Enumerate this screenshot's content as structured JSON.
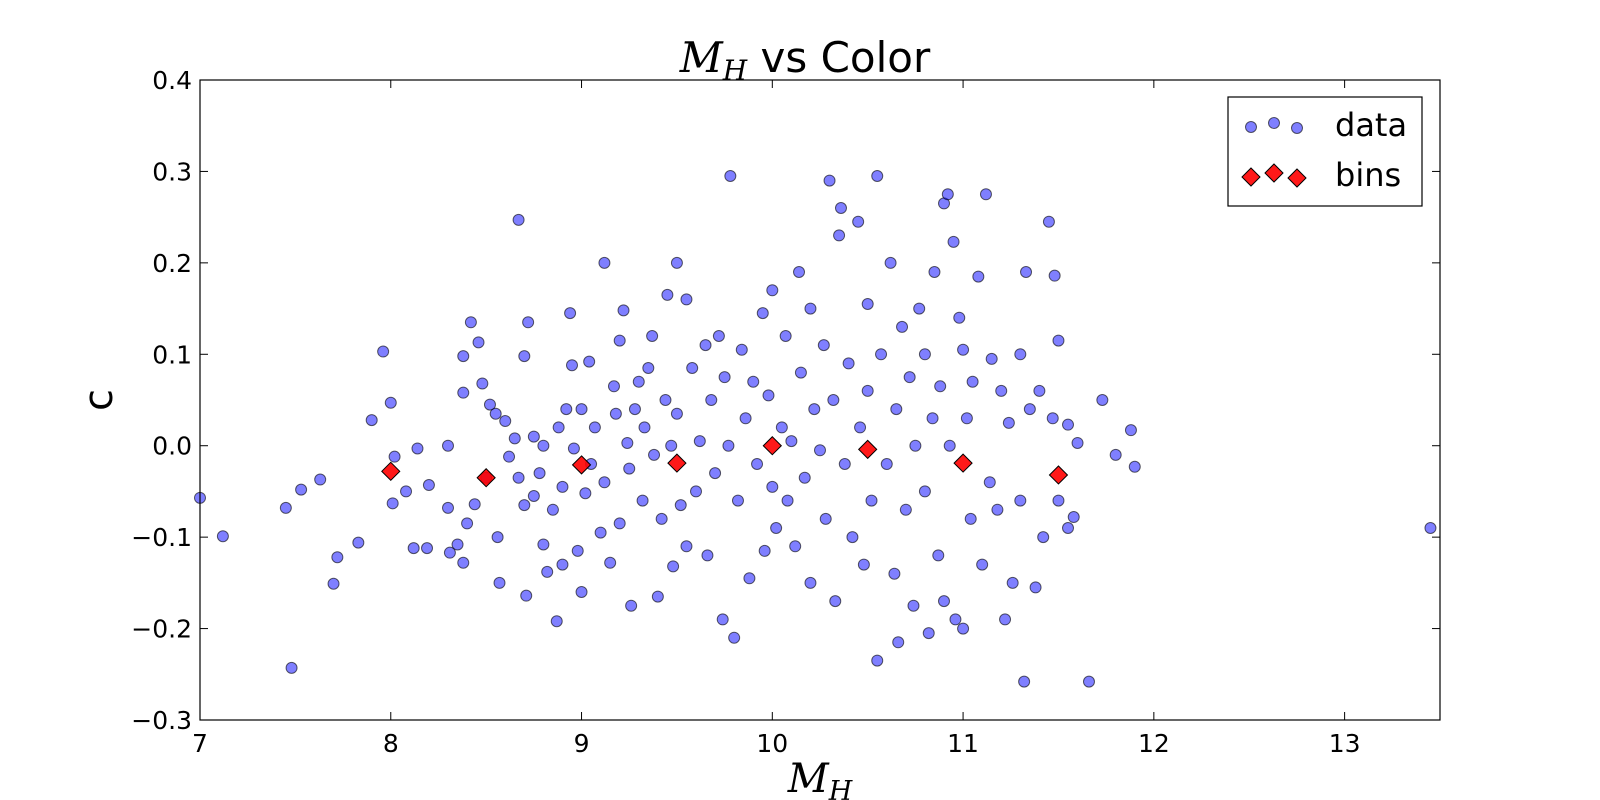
{
  "chart_data": {
    "type": "scatter",
    "title": {
      "math": "M",
      "sub": "H",
      "rest": " vs Color"
    },
    "xlabel": {
      "math": "M",
      "sub": "H"
    },
    "ylabel": "c",
    "xlim": [
      7,
      13.5
    ],
    "ylim": [
      -0.3,
      0.4
    ],
    "xticks": [
      7,
      8,
      9,
      10,
      11,
      12,
      13
    ],
    "yticks": [
      -0.3,
      -0.2,
      -0.1,
      0.0,
      0.1,
      0.2,
      0.3,
      0.4
    ],
    "xtick_labels": [
      "7",
      "8",
      "9",
      "10",
      "11",
      "12",
      "13"
    ],
    "ytick_labels": [
      "−0.3",
      "−0.2",
      "−0.1",
      "0.0",
      "0.1",
      "0.2",
      "0.3",
      "0.4"
    ],
    "grid": false,
    "legend": {
      "position": "top-right",
      "entries": [
        "data",
        "bins"
      ]
    },
    "series": [
      {
        "name": "data",
        "marker": "circle",
        "color": "#0000ff",
        "points": [
          [
            7.0,
            -0.057
          ],
          [
            7.12,
            -0.099
          ],
          [
            7.45,
            -0.068
          ],
          [
            7.48,
            -0.243
          ],
          [
            7.53,
            -0.048
          ],
          [
            7.63,
            -0.037
          ],
          [
            7.7,
            -0.151
          ],
          [
            7.72,
            -0.122
          ],
          [
            7.83,
            -0.106
          ],
          [
            7.9,
            0.028
          ],
          [
            7.96,
            0.103
          ],
          [
            8.0,
            0.047
          ],
          [
            8.01,
            -0.063
          ],
          [
            8.02,
            -0.012
          ],
          [
            8.08,
            -0.05
          ],
          [
            8.12,
            -0.112
          ],
          [
            8.14,
            -0.003
          ],
          [
            8.19,
            -0.112
          ],
          [
            8.2,
            -0.043
          ],
          [
            8.3,
            -0.068
          ],
          [
            8.3,
            0.0
          ],
          [
            8.31,
            -0.117
          ],
          [
            8.35,
            -0.108
          ],
          [
            8.38,
            0.098
          ],
          [
            8.38,
            0.058
          ],
          [
            8.38,
            -0.128
          ],
          [
            8.4,
            -0.085
          ],
          [
            8.42,
            0.135
          ],
          [
            8.44,
            -0.064
          ],
          [
            8.46,
            0.113
          ],
          [
            8.48,
            0.068
          ],
          [
            8.5,
            -0.035
          ],
          [
            8.52,
            0.045
          ],
          [
            8.55,
            0.035
          ],
          [
            8.56,
            -0.1
          ],
          [
            8.57,
            -0.15
          ],
          [
            8.6,
            0.027
          ],
          [
            8.62,
            -0.012
          ],
          [
            8.65,
            0.008
          ],
          [
            8.67,
            -0.035
          ],
          [
            8.67,
            0.247
          ],
          [
            8.7,
            0.098
          ],
          [
            8.7,
            -0.065
          ],
          [
            8.71,
            -0.164
          ],
          [
            8.72,
            0.135
          ],
          [
            8.75,
            -0.055
          ],
          [
            8.75,
            0.01
          ],
          [
            8.78,
            -0.03
          ],
          [
            8.8,
            -0.108
          ],
          [
            8.8,
            0.0
          ],
          [
            8.82,
            -0.138
          ],
          [
            8.85,
            -0.07
          ],
          [
            8.87,
            -0.192
          ],
          [
            8.88,
            0.02
          ],
          [
            8.9,
            -0.045
          ],
          [
            8.9,
            -0.13
          ],
          [
            8.92,
            0.04
          ],
          [
            8.94,
            0.145
          ],
          [
            8.95,
            0.088
          ],
          [
            8.96,
            -0.003
          ],
          [
            8.98,
            -0.115
          ],
          [
            9.0,
            -0.16
          ],
          [
            9.0,
            0.04
          ],
          [
            9.02,
            -0.052
          ],
          [
            9.04,
            0.092
          ],
          [
            9.05,
            -0.02
          ],
          [
            9.07,
            0.02
          ],
          [
            9.1,
            -0.095
          ],
          [
            9.12,
            0.2
          ],
          [
            9.12,
            -0.04
          ],
          [
            9.15,
            -0.128
          ],
          [
            9.17,
            0.065
          ],
          [
            9.18,
            0.035
          ],
          [
            9.2,
            0.115
          ],
          [
            9.2,
            -0.085
          ],
          [
            9.22,
            0.148
          ],
          [
            9.24,
            0.003
          ],
          [
            9.25,
            -0.025
          ],
          [
            9.26,
            -0.175
          ],
          [
            9.28,
            0.04
          ],
          [
            9.3,
            0.07
          ],
          [
            9.32,
            -0.06
          ],
          [
            9.33,
            0.02
          ],
          [
            9.35,
            0.085
          ],
          [
            9.37,
            0.12
          ],
          [
            9.38,
            -0.01
          ],
          [
            9.4,
            -0.165
          ],
          [
            9.42,
            -0.08
          ],
          [
            9.44,
            0.05
          ],
          [
            9.45,
            0.165
          ],
          [
            9.47,
            0.0
          ],
          [
            9.48,
            -0.132
          ],
          [
            9.5,
            0.2
          ],
          [
            9.5,
            0.035
          ],
          [
            9.52,
            -0.065
          ],
          [
            9.55,
            0.16
          ],
          [
            9.55,
            -0.11
          ],
          [
            9.58,
            0.085
          ],
          [
            9.6,
            -0.05
          ],
          [
            9.62,
            0.005
          ],
          [
            9.65,
            0.11
          ],
          [
            9.66,
            -0.12
          ],
          [
            9.68,
            0.05
          ],
          [
            9.7,
            -0.03
          ],
          [
            9.72,
            0.12
          ],
          [
            9.74,
            -0.19
          ],
          [
            9.75,
            0.075
          ],
          [
            9.77,
            0.0
          ],
          [
            9.78,
            0.295
          ],
          [
            9.8,
            -0.21
          ],
          [
            9.82,
            -0.06
          ],
          [
            9.84,
            0.105
          ],
          [
            9.86,
            0.03
          ],
          [
            9.88,
            -0.145
          ],
          [
            9.9,
            0.07
          ],
          [
            9.92,
            -0.02
          ],
          [
            9.95,
            0.145
          ],
          [
            9.96,
            -0.115
          ],
          [
            9.98,
            0.055
          ],
          [
            10.0,
            -0.045
          ],
          [
            10.0,
            0.17
          ],
          [
            10.02,
            -0.09
          ],
          [
            10.05,
            0.02
          ],
          [
            10.07,
            0.12
          ],
          [
            10.08,
            -0.06
          ],
          [
            10.1,
            0.005
          ],
          [
            10.12,
            -0.11
          ],
          [
            10.14,
            0.19
          ],
          [
            10.15,
            0.08
          ],
          [
            10.17,
            -0.035
          ],
          [
            10.2,
            0.15
          ],
          [
            10.2,
            -0.15
          ],
          [
            10.22,
            0.04
          ],
          [
            10.25,
            -0.005
          ],
          [
            10.27,
            0.11
          ],
          [
            10.28,
            -0.08
          ],
          [
            10.3,
            0.29
          ],
          [
            10.32,
            0.05
          ],
          [
            10.33,
            -0.17
          ],
          [
            10.35,
            0.23
          ],
          [
            10.36,
            0.26
          ],
          [
            10.38,
            -0.02
          ],
          [
            10.4,
            0.09
          ],
          [
            10.42,
            -0.1
          ],
          [
            10.45,
            0.245
          ],
          [
            10.46,
            0.02
          ],
          [
            10.48,
            -0.13
          ],
          [
            10.5,
            0.06
          ],
          [
            10.5,
            0.155
          ],
          [
            10.52,
            -0.06
          ],
          [
            10.55,
            0.295
          ],
          [
            10.55,
            -0.235
          ],
          [
            10.57,
            0.1
          ],
          [
            10.6,
            -0.02
          ],
          [
            10.62,
            0.2
          ],
          [
            10.64,
            -0.14
          ],
          [
            10.65,
            0.04
          ],
          [
            10.66,
            -0.215
          ],
          [
            10.68,
            0.13
          ],
          [
            10.7,
            -0.07
          ],
          [
            10.72,
            0.075
          ],
          [
            10.74,
            -0.175
          ],
          [
            10.75,
            0.0
          ],
          [
            10.77,
            0.15
          ],
          [
            10.8,
            -0.05
          ],
          [
            10.8,
            0.1
          ],
          [
            10.82,
            -0.205
          ],
          [
            10.84,
            0.03
          ],
          [
            10.85,
            0.19
          ],
          [
            10.87,
            -0.12
          ],
          [
            10.88,
            0.065
          ],
          [
            10.9,
            -0.17
          ],
          [
            10.9,
            0.265
          ],
          [
            10.92,
            0.275
          ],
          [
            10.93,
            0.0
          ],
          [
            10.95,
            0.223
          ],
          [
            10.96,
            -0.19
          ],
          [
            10.98,
            0.14
          ],
          [
            11.0,
            0.105
          ],
          [
            11.0,
            -0.2
          ],
          [
            11.02,
            0.03
          ],
          [
            11.04,
            -0.08
          ],
          [
            11.05,
            0.07
          ],
          [
            11.08,
            0.185
          ],
          [
            11.1,
            -0.13
          ],
          [
            11.12,
            0.275
          ],
          [
            11.14,
            -0.04
          ],
          [
            11.15,
            0.095
          ],
          [
            11.18,
            -0.07
          ],
          [
            11.2,
            0.06
          ],
          [
            11.22,
            -0.19
          ],
          [
            11.24,
            0.025
          ],
          [
            11.26,
            -0.15
          ],
          [
            11.3,
            0.1
          ],
          [
            11.3,
            -0.06
          ],
          [
            11.32,
            -0.258
          ],
          [
            11.33,
            0.19
          ],
          [
            11.35,
            0.04
          ],
          [
            11.38,
            -0.155
          ],
          [
            11.4,
            0.06
          ],
          [
            11.42,
            -0.1
          ],
          [
            11.45,
            0.245
          ],
          [
            11.47,
            0.03
          ],
          [
            11.48,
            0.186
          ],
          [
            11.5,
            0.115
          ],
          [
            11.5,
            -0.06
          ],
          [
            11.55,
            0.023
          ],
          [
            11.55,
            -0.09
          ],
          [
            11.58,
            -0.078
          ],
          [
            11.6,
            0.003
          ],
          [
            11.66,
            -0.258
          ],
          [
            11.73,
            0.05
          ],
          [
            11.8,
            -0.01
          ],
          [
            11.88,
            0.017
          ],
          [
            11.9,
            -0.023
          ],
          [
            13.45,
            -0.09
          ]
        ]
      },
      {
        "name": "bins",
        "marker": "diamond",
        "color": "#ff0000",
        "points": [
          [
            8.0,
            -0.028
          ],
          [
            8.5,
            -0.035
          ],
          [
            9.0,
            -0.021
          ],
          [
            9.5,
            -0.019
          ],
          [
            10.0,
            0.0
          ],
          [
            10.5,
            -0.004
          ],
          [
            11.0,
            -0.019
          ],
          [
            11.5,
            -0.032
          ]
        ]
      }
    ]
  }
}
